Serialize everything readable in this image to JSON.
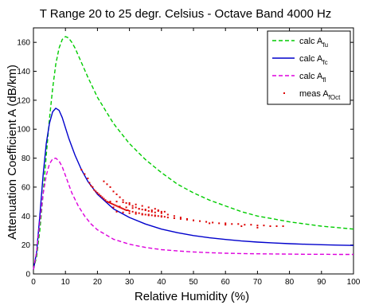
{
  "chart_data": {
    "type": "line",
    "title": "T Range 20 to 25 degr. Celsius - Octave Band 4000 Hz",
    "xlabel": "Relative Humidity (%)",
    "ylabel": "Attenuation Coefficient A (dB/km)",
    "xlim": [
      0,
      100
    ],
    "ylim": [
      0,
      170
    ],
    "xticks": [
      0,
      10,
      20,
      30,
      40,
      50,
      60,
      70,
      80,
      90,
      100
    ],
    "yticks": [
      0,
      20,
      40,
      60,
      80,
      100,
      120,
      140,
      160
    ],
    "grid": false,
    "legend_position": "top-right",
    "series": [
      {
        "name": "calc A_fu",
        "legend_main": "calc A",
        "legend_sub": "fu",
        "style": "dashed",
        "color": "#00cc00",
        "x": [
          0,
          1,
          2,
          3,
          4,
          5,
          6,
          7,
          8,
          9,
          10,
          11,
          12,
          13,
          14,
          15,
          17,
          20,
          25,
          30,
          35,
          40,
          45,
          50,
          55,
          60,
          65,
          70,
          75,
          80,
          85,
          90,
          95,
          100
        ],
        "y": [
          3,
          12,
          30,
          55,
          82,
          107,
          128,
          145,
          156,
          162,
          164,
          163,
          160,
          156,
          151,
          146,
          136,
          122,
          104,
          90,
          79,
          70,
          62,
          56,
          51,
          47,
          43,
          40,
          38,
          36,
          34.5,
          33,
          32,
          31
        ]
      },
      {
        "name": "calc A_fc",
        "legend_main": "calc A",
        "legend_sub": "fc",
        "style": "solid",
        "color": "#0000cc",
        "x": [
          0,
          1,
          2,
          3,
          4,
          5,
          6,
          7,
          8,
          9,
          10,
          11,
          12,
          13,
          15,
          17,
          20,
          25,
          30,
          35,
          40,
          45,
          50,
          55,
          60,
          65,
          70,
          75,
          80,
          85,
          90,
          95,
          100
        ],
        "y": [
          3,
          15,
          40,
          68,
          90,
          104,
          112,
          114.5,
          113,
          108,
          101,
          94,
          88,
          82,
          72,
          64,
          55,
          45,
          39,
          34.5,
          31,
          28.5,
          26.5,
          25,
          23.8,
          22.8,
          22,
          21.4,
          20.9,
          20.5,
          20.2,
          19.9,
          19.7
        ]
      },
      {
        "name": "calc A_fl",
        "legend_main": "calc A",
        "legend_sub": "fl",
        "style": "dashed",
        "color": "#dd00dd",
        "x": [
          0,
          1,
          2,
          3,
          4,
          5,
          6,
          7,
          8,
          9,
          10,
          11,
          12,
          14,
          16,
          18,
          20,
          25,
          30,
          35,
          40,
          45,
          50,
          55,
          60,
          65,
          70,
          75,
          80,
          85,
          90,
          95,
          100
        ],
        "y": [
          3,
          15,
          36,
          55,
          68,
          76,
          79.5,
          80,
          78,
          74,
          68,
          62,
          56,
          47,
          40,
          34.5,
          30.5,
          24,
          20.5,
          18.3,
          16.8,
          15.9,
          15.2,
          14.7,
          14.3,
          14.1,
          13.9,
          13.8,
          13.7,
          13.6,
          13.6,
          13.5,
          13.5
        ]
      },
      {
        "name": "meas A_fOct",
        "legend_main": "meas A",
        "legend_sub": "fOct",
        "style": "markers",
        "color": "#dd0000",
        "x": [
          15,
          16,
          17,
          17.5,
          18,
          18.5,
          19,
          19.5,
          20,
          20.5,
          21,
          21.5,
          22,
          22.5,
          23,
          23.5,
          24,
          24.5,
          25,
          25.5,
          26,
          26.5,
          27,
          27.5,
          28,
          28.5,
          29,
          29.5,
          30,
          31,
          32,
          33,
          34,
          35,
          36,
          37,
          38,
          39,
          40,
          41,
          26,
          28,
          30,
          32,
          34,
          36,
          38,
          40,
          42,
          44,
          46,
          48,
          50,
          52,
          54,
          56,
          58,
          60,
          62,
          64,
          66,
          68,
          70,
          72,
          74,
          76,
          78,
          25,
          27,
          29,
          31,
          33,
          35,
          37,
          39,
          41,
          22,
          23,
          24,
          25,
          26,
          27,
          28,
          29,
          30,
          31,
          32,
          33,
          34,
          35,
          36,
          37,
          38,
          40,
          42,
          44,
          46,
          48,
          50,
          55,
          60,
          65,
          70,
          24,
          26,
          28,
          30,
          32,
          34,
          36,
          38,
          39,
          40
        ],
        "y": [
          72,
          69,
          66,
          63,
          61,
          60,
          58,
          57,
          56,
          55,
          54,
          53,
          52,
          51,
          50,
          49.5,
          49,
          48.5,
          48,
          47.5,
          47,
          46.5,
          46,
          45.5,
          45,
          44.5,
          44,
          44,
          43.5,
          43,
          42.5,
          42,
          41.5,
          41,
          41,
          40.5,
          40.5,
          40,
          40,
          39.5,
          43,
          42.5,
          42,
          41.5,
          41,
          40.5,
          40,
          39.5,
          39,
          38.5,
          38,
          37.5,
          37,
          36.5,
          36,
          35.5,
          35,
          35,
          34.5,
          34.5,
          34,
          34,
          33.5,
          33.5,
          33,
          33,
          33,
          46,
          46.5,
          46,
          45.5,
          45,
          44.5,
          44,
          43.5,
          43,
          64,
          62,
          60,
          57,
          55,
          53,
          51,
          49,
          48,
          47,
          46,
          45,
          44.5,
          44,
          43.5,
          43,
          42.5,
          42,
          41,
          40,
          39,
          38,
          37,
          35,
          34,
          33,
          32,
          50,
          50,
          49.5,
          49,
          48,
          47,
          46,
          45,
          44,
          43
        ]
      }
    ]
  }
}
